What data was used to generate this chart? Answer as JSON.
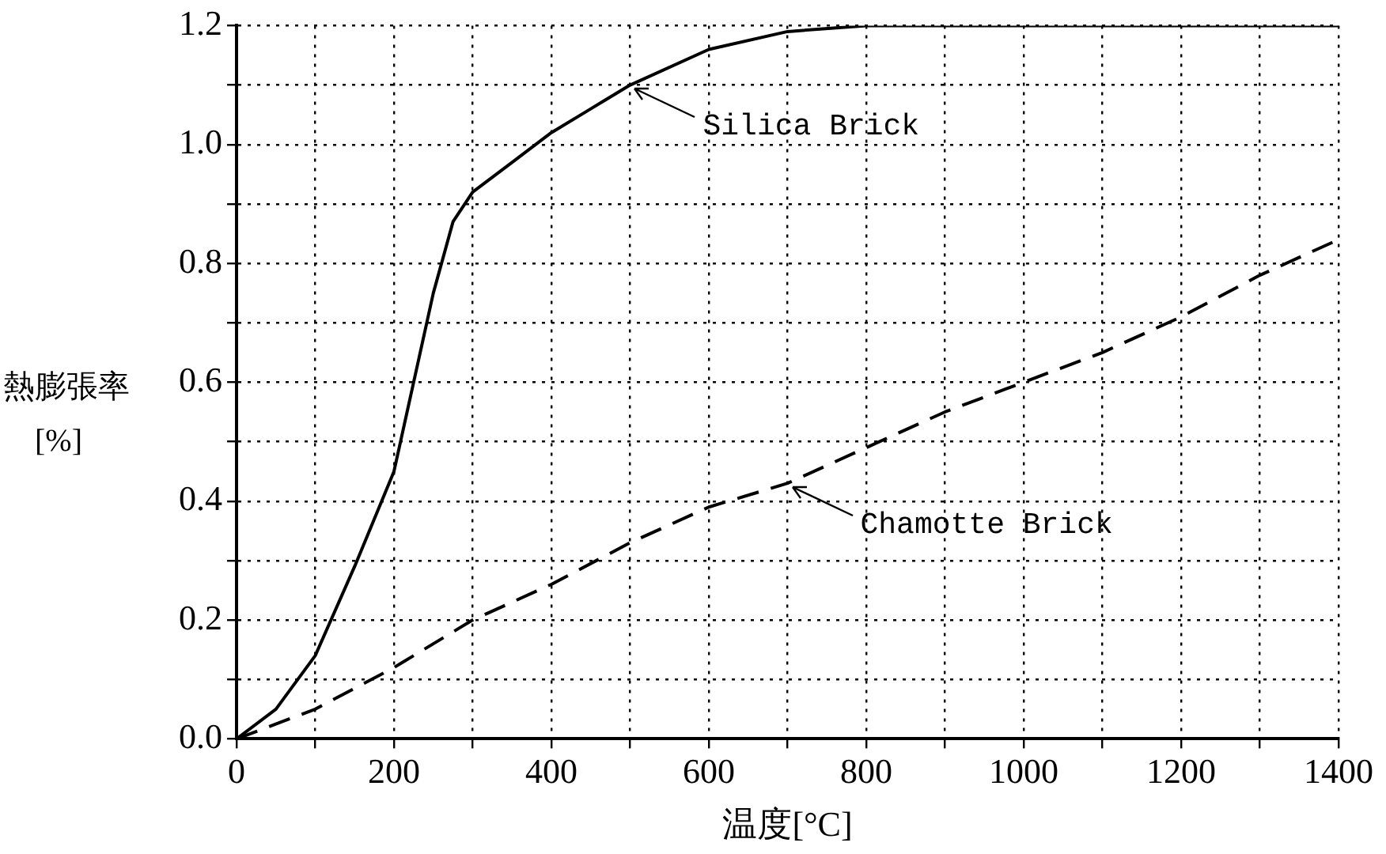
{
  "chart_data": {
    "type": "line",
    "xlabel": "温度[°C]",
    "ylabel": "熱膨張率\n[%]",
    "xlim": [
      0,
      1400
    ],
    "xticks": [
      0,
      {
        "value": 100,
        "label": null
      },
      200,
      {
        "value": 300,
        "label": null
      },
      400,
      {
        "value": 500,
        "label": null
      },
      600,
      {
        "value": 700,
        "label": null
      },
      800,
      {
        "value": 900,
        "label": null
      },
      1000,
      {
        "value": 1100,
        "label": null
      },
      1200,
      {
        "value": 1300,
        "label": null
      },
      1400
    ],
    "ylim": [
      0,
      1.2
    ],
    "yticks": [
      {
        "value": 0,
        "label": "0.0"
      },
      {
        "value": 0.1,
        "label": null
      },
      {
        "value": 0.2,
        "label": "0.2"
      },
      {
        "value": 0.3,
        "label": null
      },
      {
        "value": 0.4,
        "label": "0.4"
      },
      {
        "value": 0.5,
        "label": null
      },
      {
        "value": 0.6,
        "label": "0.6"
      },
      {
        "value": 0.7,
        "label": null
      },
      {
        "value": 0.8,
        "label": "0.8"
      },
      {
        "value": 0.9,
        "label": null
      },
      {
        "value": 1.0,
        "label": "1.0"
      },
      {
        "value": 1.1,
        "label": null
      },
      {
        "value": 1.2,
        "label": "1.2"
      }
    ],
    "grid": true,
    "legend": false,
    "marker": "none",
    "series": [
      {
        "name": "Silica Brick",
        "color": "#000000",
        "line_style": "solid",
        "x": [
          0,
          50,
          100,
          150,
          200,
          225,
          250,
          275,
          300,
          350,
          400,
          450,
          500,
          600,
          700,
          800,
          1000,
          1400
        ],
        "values": [
          0,
          0.05,
          0.14,
          0.29,
          0.45,
          0.6,
          0.75,
          0.87,
          0.92,
          0.97,
          1.02,
          1.06,
          1.1,
          1.16,
          1.19,
          1.2,
          1.2,
          1.2
        ]
      },
      {
        "name": "Chamotte Brick",
        "color": "#000000",
        "line_style": "dashed",
        "x": [
          0,
          100,
          200,
          300,
          400,
          500,
          600,
          700,
          800,
          900,
          1000,
          1100,
          1200,
          1300,
          1400
        ],
        "values": [
          0,
          0.05,
          0.12,
          0.2,
          0.26,
          0.33,
          0.39,
          0.43,
          0.49,
          0.55,
          0.6,
          0.65,
          0.71,
          0.78,
          0.84
        ]
      }
    ]
  }
}
